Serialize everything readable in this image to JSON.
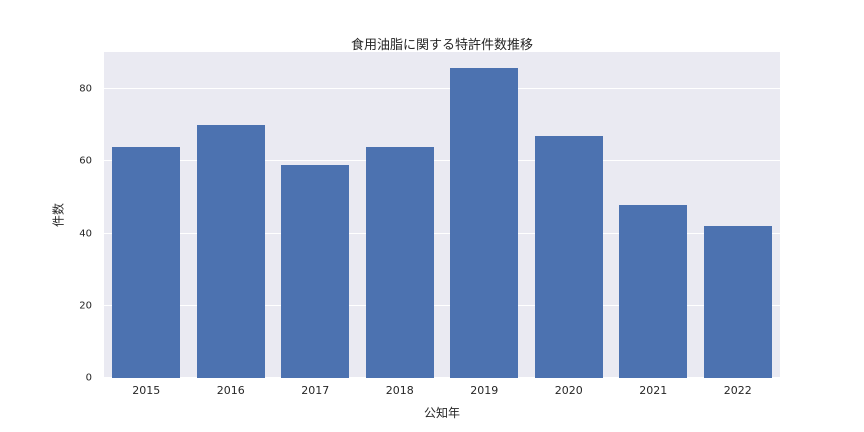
{
  "chart_data": {
    "type": "bar",
    "title": "食用油脂に関する特許件数推移",
    "xlabel": "公知年",
    "ylabel": "件数",
    "categories": [
      "2015",
      "2016",
      "2017",
      "2018",
      "2019",
      "2020",
      "2021",
      "2022"
    ],
    "values": [
      64,
      70,
      59,
      64,
      86,
      67,
      48,
      42
    ],
    "yticks": [
      0,
      20,
      40,
      60,
      80
    ],
    "ylim": [
      0,
      90.3
    ],
    "bar_color": "#4c72b0",
    "plot_background": "#eaeaf2",
    "grid": "on",
    "legend_position": "none"
  }
}
